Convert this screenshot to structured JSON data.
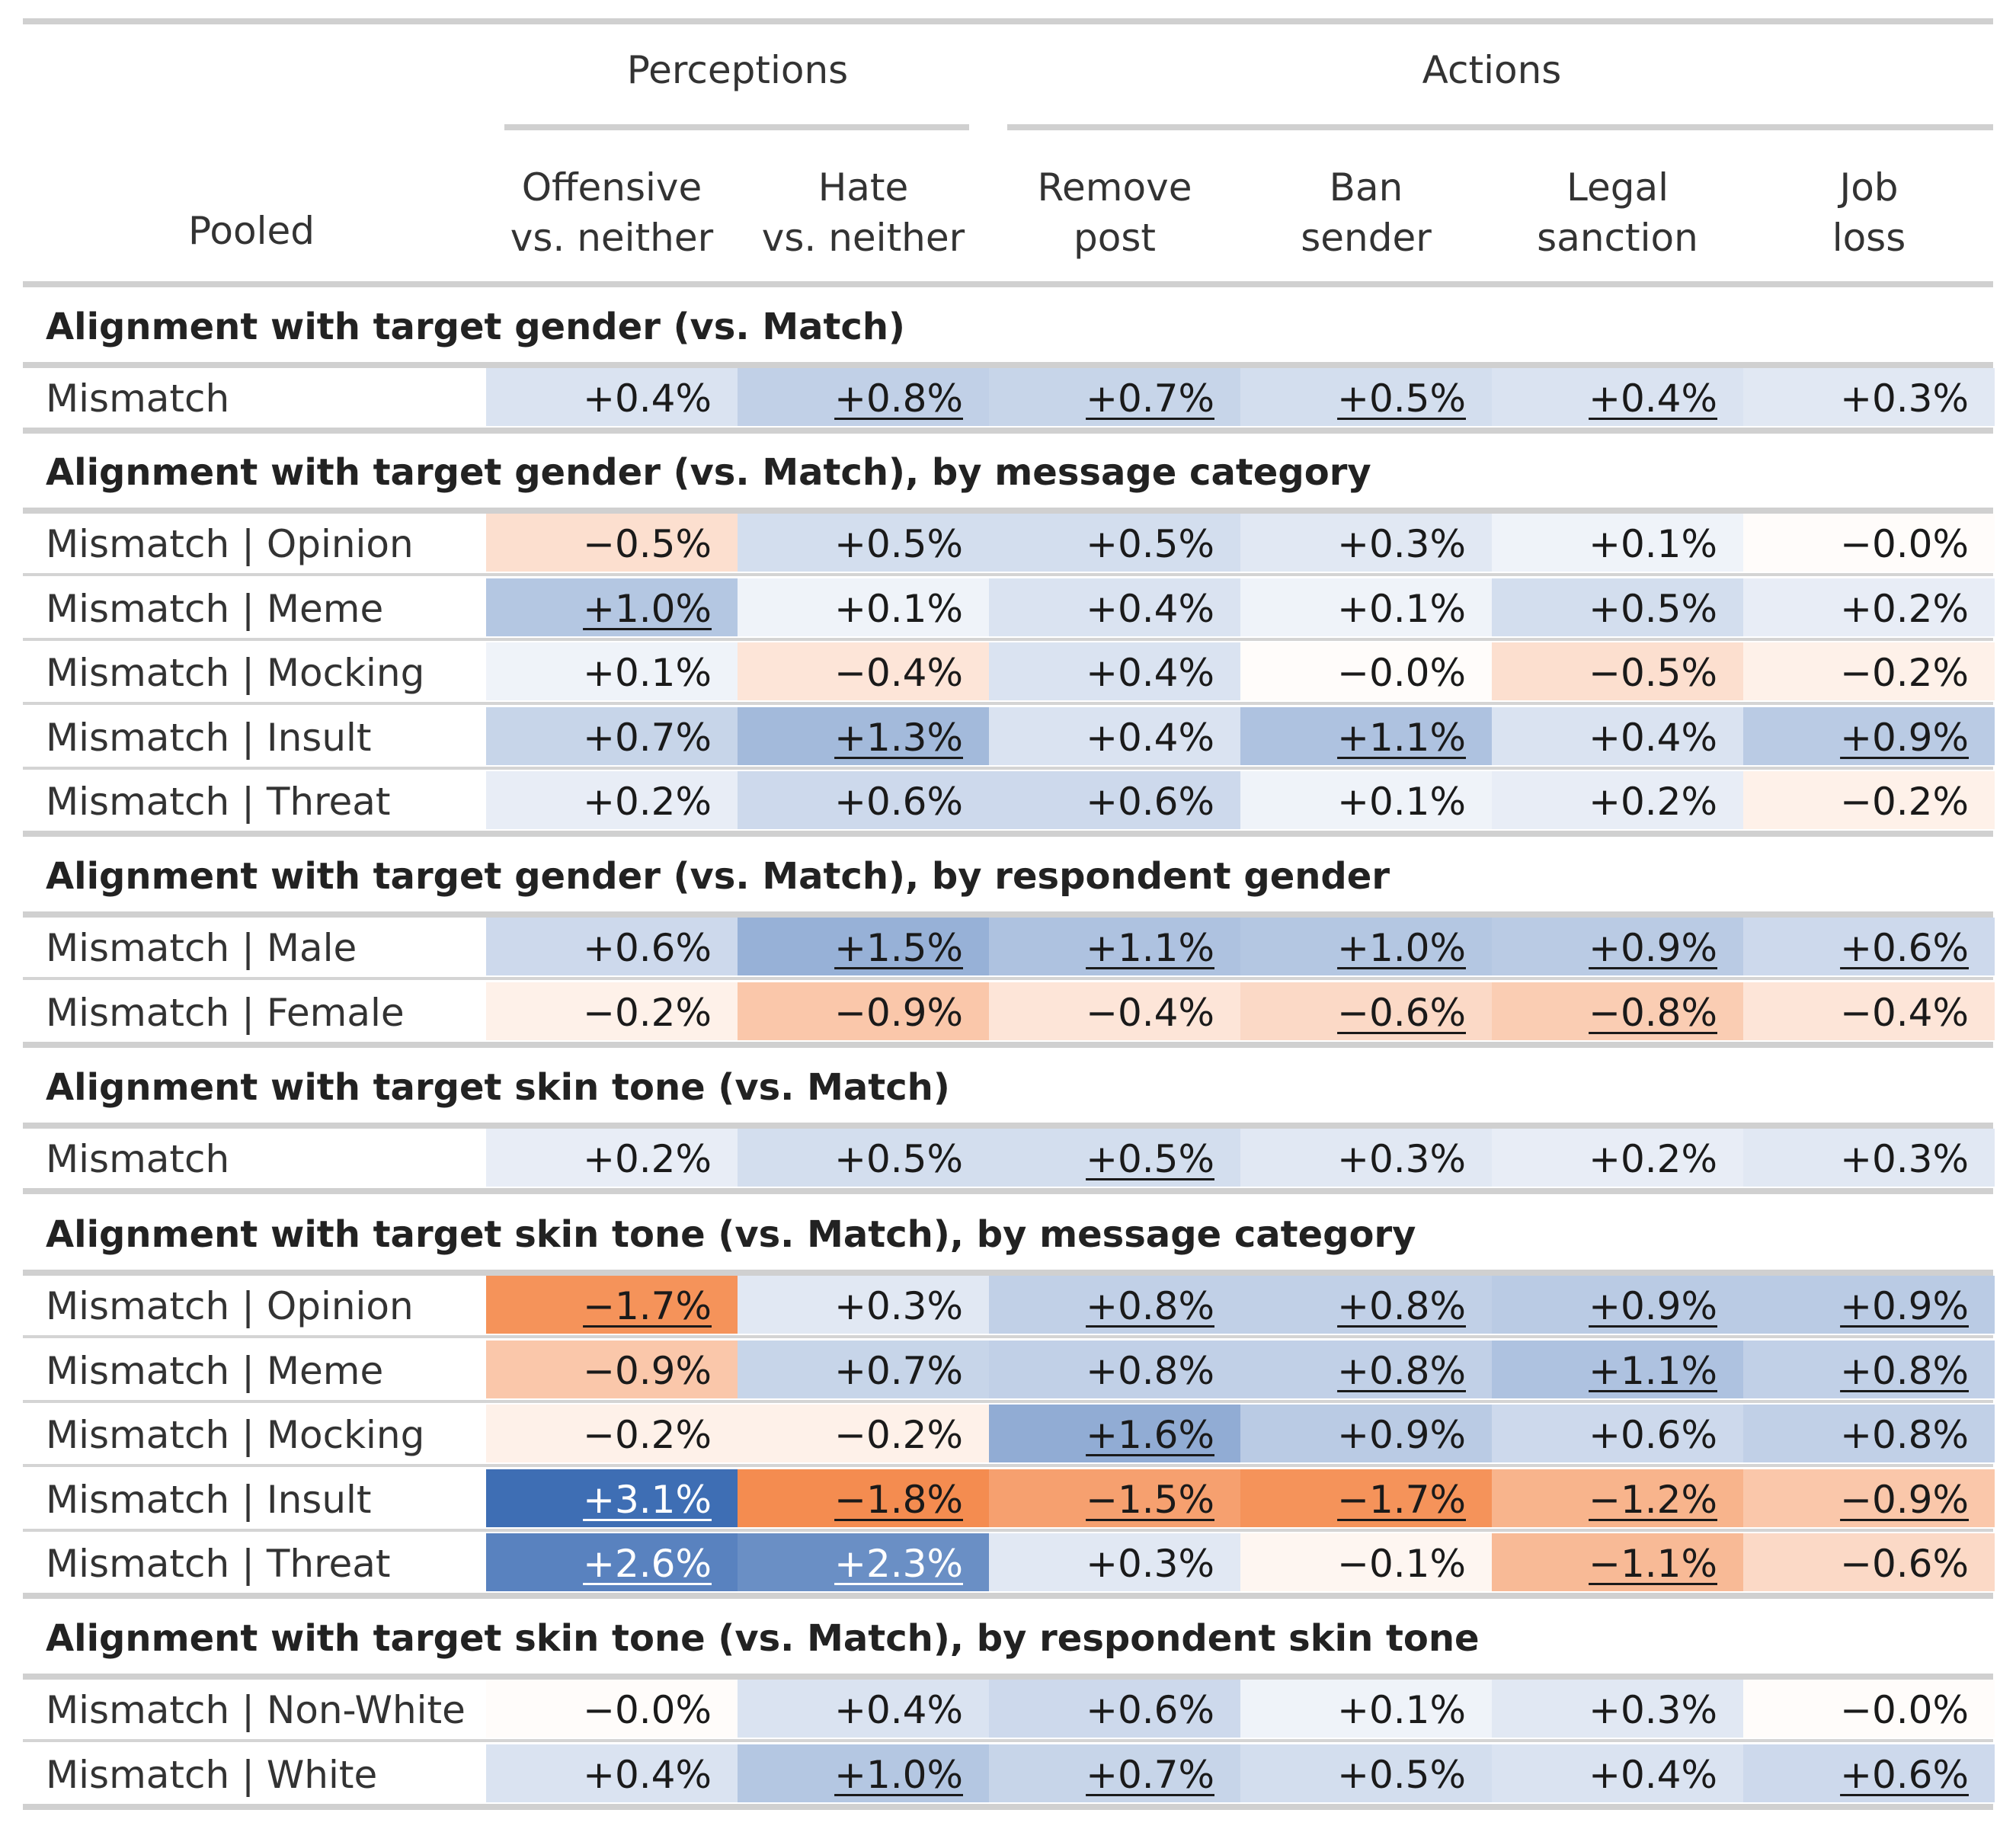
{
  "chart_data": {
    "type": "table",
    "header": {
      "row_label": "Pooled",
      "groups": [
        {
          "label": "Perceptions",
          "span": [
            0,
            1
          ]
        },
        {
          "label": "Actions",
          "span": [
            2,
            5
          ]
        }
      ],
      "columns": [
        "Offensive\nvs. neither",
        "Hate\nvs. neither",
        "Remove\npost",
        "Ban\nsender",
        "Legal\nsanction",
        "Job\nloss"
      ]
    },
    "sections": [
      {
        "title": "Alignment with target gender (vs. Match)",
        "rows": [
          {
            "label": "Mismatch",
            "values": [
              0.4,
              0.8,
              0.7,
              0.5,
              0.4,
              0.3
            ],
            "underlined": [
              false,
              true,
              true,
              true,
              true,
              false
            ]
          }
        ]
      },
      {
        "title": "Alignment with target gender (vs. Match), by message category",
        "rows": [
          {
            "label": "Mismatch | Opinion",
            "values": [
              -0.5,
              0.5,
              0.5,
              0.3,
              0.1,
              -0.0
            ],
            "underlined": [
              false,
              false,
              false,
              false,
              false,
              false
            ]
          },
          {
            "label": "Mismatch | Meme",
            "values": [
              1.0,
              0.1,
              0.4,
              0.1,
              0.5,
              0.2
            ],
            "underlined": [
              true,
              false,
              false,
              false,
              false,
              false
            ]
          },
          {
            "label": "Mismatch | Mocking",
            "values": [
              0.1,
              -0.4,
              0.4,
              -0.0,
              -0.5,
              -0.2
            ],
            "underlined": [
              false,
              false,
              false,
              false,
              false,
              false
            ]
          },
          {
            "label": "Mismatch | Insult",
            "values": [
              0.7,
              1.3,
              0.4,
              1.1,
              0.4,
              0.9
            ],
            "underlined": [
              false,
              true,
              false,
              true,
              false,
              true
            ]
          },
          {
            "label": "Mismatch | Threat",
            "values": [
              0.2,
              0.6,
              0.6,
              0.1,
              0.2,
              -0.2
            ],
            "underlined": [
              false,
              false,
              false,
              false,
              false,
              false
            ]
          }
        ]
      },
      {
        "title": "Alignment with target gender (vs. Match), by respondent gender",
        "rows": [
          {
            "label": "Mismatch | Male",
            "values": [
              0.6,
              1.5,
              1.1,
              1.0,
              0.9,
              0.6
            ],
            "underlined": [
              false,
              true,
              true,
              true,
              true,
              true
            ]
          },
          {
            "label": "Mismatch | Female",
            "values": [
              -0.2,
              -0.9,
              -0.4,
              -0.6,
              -0.8,
              -0.4
            ],
            "underlined": [
              false,
              false,
              false,
              true,
              true,
              false
            ]
          }
        ]
      },
      {
        "title": "Alignment with target skin tone (vs. Match)",
        "rows": [
          {
            "label": "Mismatch",
            "values": [
              0.2,
              0.5,
              0.5,
              0.3,
              0.2,
              0.3
            ],
            "underlined": [
              false,
              false,
              true,
              false,
              false,
              false
            ]
          }
        ]
      },
      {
        "title": "Alignment with target skin tone (vs. Match), by message category",
        "rows": [
          {
            "label": "Mismatch | Opinion",
            "values": [
              -1.7,
              0.3,
              0.8,
              0.8,
              0.9,
              0.9
            ],
            "underlined": [
              true,
              false,
              true,
              true,
              true,
              true
            ]
          },
          {
            "label": "Mismatch | Meme",
            "values": [
              -0.9,
              0.7,
              0.8,
              0.8,
              1.1,
              0.8
            ],
            "underlined": [
              false,
              false,
              false,
              true,
              true,
              true
            ]
          },
          {
            "label": "Mismatch | Mocking",
            "values": [
              -0.2,
              -0.2,
              1.6,
              0.9,
              0.6,
              0.8
            ],
            "underlined": [
              false,
              false,
              true,
              false,
              false,
              false
            ]
          },
          {
            "label": "Mismatch | Insult",
            "values": [
              3.1,
              -1.8,
              -1.5,
              -1.7,
              -1.2,
              -0.9
            ],
            "underlined": [
              true,
              true,
              true,
              true,
              true,
              true
            ]
          },
          {
            "label": "Mismatch | Threat",
            "values": [
              2.6,
              2.3,
              0.3,
              -0.1,
              -1.1,
              -0.6
            ],
            "underlined": [
              true,
              true,
              false,
              false,
              true,
              false
            ]
          }
        ]
      },
      {
        "title": "Alignment with target skin tone (vs. Match), by respondent skin tone",
        "rows": [
          {
            "label": "Mismatch | Non-White",
            "values": [
              -0.0,
              0.4,
              0.6,
              0.1,
              0.3,
              -0.0
            ],
            "underlined": [
              false,
              false,
              false,
              false,
              false,
              false
            ]
          },
          {
            "label": "Mismatch | White",
            "values": [
              0.4,
              1.0,
              0.7,
              0.5,
              0.4,
              0.6
            ],
            "underlined": [
              false,
              true,
              true,
              false,
              false,
              true
            ]
          }
        ]
      }
    ],
    "value_format": "signed percent, one decimal",
    "color_scale": {
      "negative": "#f4a060",
      "positive": "#4a78b8",
      "neutral": "#ffffff"
    }
  }
}
